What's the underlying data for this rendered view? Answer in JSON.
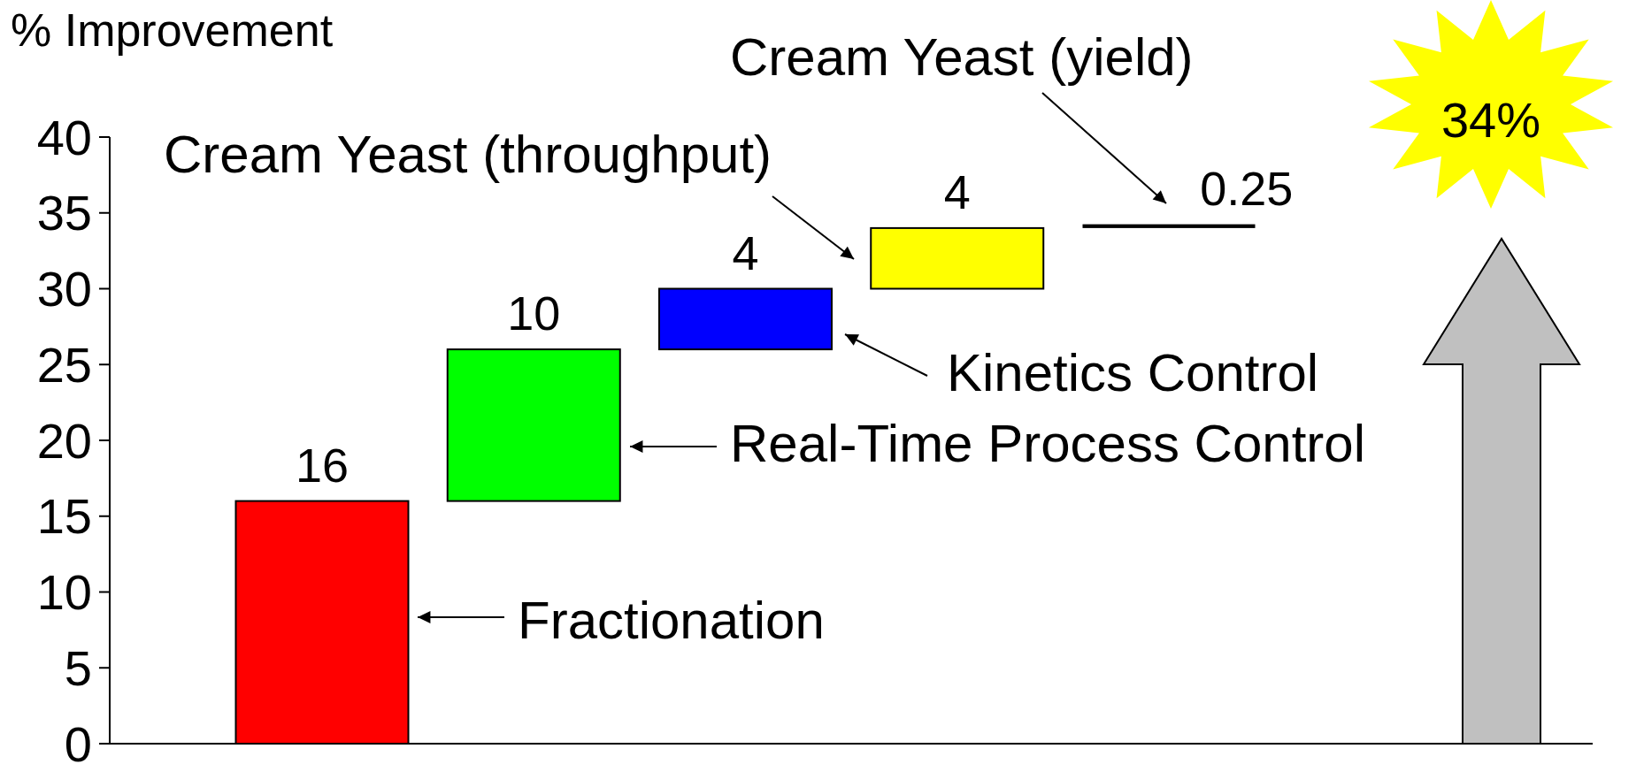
{
  "chart_data": {
    "type": "bar",
    "ylabel": "% Improvement",
    "categories": [
      null,
      null,
      null,
      null,
      null
    ],
    "base": [
      0,
      16,
      26,
      30,
      34
    ],
    "values": [
      16,
      10,
      4,
      4,
      0.25
    ],
    "colors": [
      "#ff0000",
      "#00ff00",
      "#0000ff",
      "#ffff00",
      "#000000"
    ],
    "data_labels": true,
    "ylim": [
      0,
      40
    ],
    "yticks": [
      0,
      5,
      10,
      15,
      20,
      25,
      30,
      35,
      40
    ],
    "annotations": [
      "Fractionation",
      "Real-Time Process Control",
      "Kinetics Control",
      "Cream Yeast (throughput)",
      "Cream Yeast (yield)",
      "34%"
    ]
  }
}
